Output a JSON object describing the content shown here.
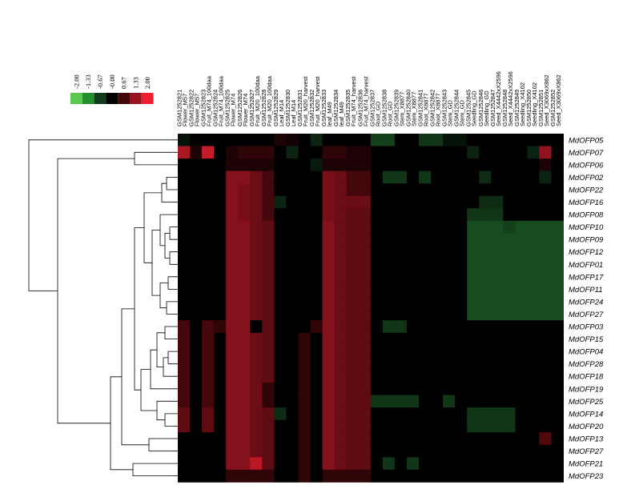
{
  "chart_data": {
    "type": "heatmap",
    "color_scale": {
      "ticks": [
        "-2.00",
        "-1.33",
        "-0.67",
        "-0.00",
        "0.67",
        "1.33",
        "2.00"
      ],
      "colors": [
        "#58c84f",
        "#248f2c",
        "#123b1a",
        "#000000",
        "#40060a",
        "#961420",
        "#ee2030"
      ],
      "range": [
        -2,
        2
      ]
    },
    "columns": [
      {
        "id": "GSM1252821",
        "tissue": "Flower_M57"
      },
      {
        "id": "GSM1252822",
        "tissue": "Flower_M57"
      },
      {
        "id": "GSM1252823",
        "tissue": "Fruit_M74_100daa"
      },
      {
        "id": "GSM1252824",
        "tissue": "Fruit_M74_100daa"
      },
      {
        "id": "GSM1252825",
        "tissue": "Flower_M74"
      },
      {
        "id": "GSM1252826",
        "tissue": "Flower_M74"
      },
      {
        "id": "GSM1252827",
        "tissue": "Fruit_M20_100daa"
      },
      {
        "id": "GSM1252828",
        "tissue": "Fruit_M20_100daa"
      },
      {
        "id": "GSM1252829",
        "tissue": "Leaf_M14"
      },
      {
        "id": "GSM1252830",
        "tissue": "Leaf_M14"
      },
      {
        "id": "GSM1252831",
        "tissue": "Fruit_M20_harvest"
      },
      {
        "id": "GSM1252832",
        "tissue": "Fruit_M20_harvest"
      },
      {
        "id": "GSM1252833",
        "tissue": "leaf_M49"
      },
      {
        "id": "GSM1252834",
        "tissue": "leaf_M49"
      },
      {
        "id": "GSM1252835",
        "tissue": "Fruit_M74_harvest"
      },
      {
        "id": "GSM1252836",
        "tissue": "Fruit_M74_harvest"
      },
      {
        "id": "GSM1252837",
        "tissue": "Root_GD"
      },
      {
        "id": "GSM1252838",
        "tissue": "Root_GD"
      },
      {
        "id": "GSM1252839",
        "tissue": "Stem_X8877"
      },
      {
        "id": "GSM1252840",
        "tissue": "Stem_X8877"
      },
      {
        "id": "GSM1252841",
        "tissue": "Root_X8877"
      },
      {
        "id": "GSM1252842",
        "tissue": "Root_X8877"
      },
      {
        "id": "GSM1252843",
        "tissue": "Stem_GD"
      },
      {
        "id": "GSM1252844",
        "tissue": "Stem_GD"
      },
      {
        "id": "GSM1252845",
        "tissue": "Seedling_GD"
      },
      {
        "id": "GSM1252846",
        "tissue": "Seedling_GD"
      },
      {
        "id": "GSM1252847",
        "tissue": "Seed_X4442xX2596"
      },
      {
        "id": "GSM1252848",
        "tissue": "Seed_X4442xX2596"
      },
      {
        "id": "GSM1252849",
        "tissue": "Seedling_X4102"
      },
      {
        "id": "GSM1252850",
        "tissue": "Seedling_X4102"
      },
      {
        "id": "GSM1252851",
        "tissue": "Seed_X3069xX862"
      },
      {
        "id": "GSM1252852",
        "tissue": "Seed_X3069xX862"
      }
    ],
    "rows": [
      "MdOFP05",
      "MdOFP07",
      "MdOFP06",
      "MdOFP02",
      "MdOFP22",
      "MdOFP16",
      "MdOFP08",
      "MdOFP10",
      "MdOFP09",
      "MdOFP12",
      "MdOFP01",
      "MdOFP17",
      "MdOFP11",
      "MdOFP24",
      "MdOFP27",
      "MdOFP03",
      "MdOFP15",
      "MdOFP04",
      "MdOFP28",
      "MdOFP18",
      "MdOFP19",
      "MdOFP25",
      "MdOFP14",
      "MdOFP20",
      "MdOFP13",
      "MdOFP27",
      "MdOFP21",
      "MdOFP23"
    ],
    "values": [
      [
        -0.2,
        0.0,
        0.0,
        0.0,
        0.0,
        0.0,
        0.0,
        0.0,
        0.3,
        0.2,
        0.0,
        -0.4,
        0.0,
        0.0,
        0.0,
        0.0,
        -0.7,
        -0.7,
        0.0,
        0.0,
        -0.6,
        -0.6,
        -0.2,
        -0.2,
        0.0,
        0.0,
        0.0,
        0.0,
        0.0,
        0.0,
        0.0,
        0.0
      ],
      [
        1.5,
        0.3,
        1.7,
        0.0,
        0.3,
        0.5,
        0.5,
        0.5,
        0.0,
        -0.4,
        0.0,
        0.0,
        0.5,
        0.5,
        0.3,
        0.3,
        0.0,
        0.0,
        0.0,
        0.0,
        0.0,
        0.0,
        0.0,
        0.0,
        -0.4,
        0.0,
        0.0,
        0.0,
        0.0,
        -0.4,
        1.3,
        0.0
      ],
      [
        0.0,
        0.0,
        0.0,
        0.0,
        0.3,
        0.3,
        0.3,
        0.3,
        0.0,
        0.0,
        0.0,
        -0.3,
        0.3,
        0.3,
        0.3,
        0.3,
        0.0,
        0.0,
        0.0,
        0.0,
        0.0,
        0.0,
        0.0,
        0.0,
        0.0,
        0.0,
        0.0,
        0.0,
        0.0,
        0.0,
        0.3,
        0.0
      ],
      [
        0.0,
        0.0,
        0.0,
        0.0,
        1.2,
        1.2,
        1.0,
        0.7,
        0.0,
        0.0,
        0.0,
        0.0,
        1.1,
        1.0,
        0.7,
        0.7,
        0.0,
        -0.6,
        -0.6,
        0.0,
        -0.6,
        0.0,
        0.0,
        0.0,
        0.0,
        -0.5,
        0.0,
        0.0,
        0.0,
        0.0,
        -0.4,
        0.0
      ],
      [
        0.0,
        0.0,
        0.0,
        0.0,
        1.2,
        1.1,
        1.0,
        0.7,
        0.0,
        0.0,
        0.0,
        0.0,
        1.1,
        1.0,
        0.7,
        0.7,
        0.0,
        0.0,
        0.0,
        0.0,
        0.0,
        0.0,
        0.0,
        0.0,
        0.0,
        0.0,
        0.0,
        0.0,
        0.0,
        0.0,
        0.0,
        0.0
      ],
      [
        0.0,
        0.0,
        0.0,
        0.0,
        1.2,
        1.1,
        1.0,
        0.7,
        -0.4,
        0.0,
        0.0,
        0.0,
        1.1,
        1.0,
        1.0,
        1.0,
        0.0,
        0.0,
        0.0,
        0.0,
        0.0,
        0.0,
        0.0,
        0.0,
        0.0,
        -0.5,
        -0.5,
        0.0,
        0.0,
        0.0,
        0.0,
        0.0
      ],
      [
        0.0,
        0.0,
        0.0,
        0.0,
        1.2,
        1.1,
        1.0,
        0.7,
        0.0,
        0.0,
        0.0,
        0.0,
        1.1,
        1.0,
        0.9,
        0.9,
        0.0,
        0.0,
        0.0,
        0.0,
        0.0,
        0.0,
        0.0,
        0.0,
        -0.6,
        -0.6,
        -0.6,
        0.0,
        0.0,
        0.0,
        0.0,
        0.0
      ],
      [
        0.0,
        0.0,
        0.0,
        0.0,
        1.2,
        1.2,
        1.0,
        0.9,
        0.0,
        0.0,
        0.0,
        0.0,
        1.2,
        1.0,
        0.9,
        0.9,
        0.0,
        0.0,
        0.0,
        0.0,
        0.0,
        0.0,
        0.0,
        0.0,
        -0.8,
        -0.8,
        -0.8,
        -0.7,
        -0.8,
        -0.8,
        -0.8,
        -0.8
      ],
      [
        0.0,
        0.0,
        0.0,
        0.0,
        1.2,
        1.2,
        1.0,
        0.9,
        0.0,
        0.0,
        0.0,
        0.0,
        1.2,
        1.0,
        0.9,
        0.9,
        0.0,
        0.0,
        0.0,
        0.0,
        0.0,
        0.0,
        0.0,
        0.0,
        -0.8,
        -0.8,
        -0.8,
        -0.8,
        -0.8,
        -0.8,
        -0.8,
        -0.8
      ],
      [
        0.0,
        0.0,
        0.0,
        0.0,
        1.2,
        1.2,
        1.0,
        0.9,
        0.0,
        0.0,
        0.0,
        0.0,
        1.2,
        1.0,
        0.9,
        0.9,
        0.0,
        0.0,
        0.0,
        0.0,
        0.0,
        0.0,
        0.0,
        0.0,
        -0.8,
        -0.8,
        -0.8,
        -0.8,
        -0.8,
        -0.8,
        -0.8,
        -0.8
      ],
      [
        0.0,
        0.0,
        0.0,
        0.0,
        1.2,
        1.2,
        1.0,
        0.9,
        0.0,
        0.0,
        0.0,
        0.0,
        1.2,
        1.0,
        0.9,
        0.9,
        0.0,
        0.0,
        0.0,
        0.0,
        0.0,
        0.0,
        0.0,
        0.0,
        -0.8,
        -0.8,
        -0.8,
        -0.8,
        -0.8,
        -0.8,
        -0.8,
        -0.8
      ],
      [
        0.0,
        0.0,
        0.0,
        0.0,
        1.2,
        1.2,
        1.0,
        0.9,
        0.0,
        0.0,
        0.0,
        0.0,
        1.2,
        1.0,
        0.9,
        0.9,
        0.0,
        0.0,
        0.0,
        0.0,
        0.0,
        0.0,
        0.0,
        0.0,
        -0.8,
        -0.8,
        -0.8,
        -0.8,
        -0.8,
        -0.8,
        -0.8,
        -0.8
      ],
      [
        0.0,
        0.0,
        0.0,
        0.0,
        1.2,
        1.2,
        1.0,
        0.9,
        0.0,
        0.0,
        0.0,
        0.0,
        1.2,
        1.0,
        0.9,
        0.9,
        0.0,
        0.0,
        0.0,
        0.0,
        0.0,
        0.0,
        0.0,
        0.0,
        -0.8,
        -0.8,
        -0.8,
        -0.8,
        -0.8,
        -0.8,
        -0.8,
        -0.8
      ],
      [
        0.0,
        0.0,
        0.0,
        0.0,
        1.2,
        1.2,
        1.0,
        0.9,
        0.0,
        0.0,
        0.0,
        0.0,
        1.2,
        1.0,
        0.9,
        0.9,
        0.0,
        0.0,
        0.0,
        0.0,
        0.0,
        0.0,
        0.0,
        0.0,
        -0.8,
        -0.8,
        -0.8,
        -0.8,
        -0.8,
        -0.8,
        -0.8,
        -0.8
      ],
      [
        0.0,
        0.0,
        0.0,
        0.0,
        1.2,
        1.2,
        1.0,
        0.9,
        0.0,
        0.0,
        0.0,
        0.0,
        1.2,
        1.0,
        0.9,
        0.9,
        0.0,
        0.0,
        0.0,
        0.0,
        0.0,
        0.0,
        0.0,
        0.0,
        -0.8,
        -0.8,
        -0.8,
        -0.8,
        -0.8,
        -0.8,
        -0.8,
        -0.8
      ],
      [
        0.7,
        0.0,
        0.7,
        0.5,
        1.2,
        1.2,
        0.0,
        0.9,
        0.0,
        0.0,
        0.0,
        0.5,
        1.2,
        1.0,
        0.9,
        0.9,
        0.0,
        -0.6,
        -0.6,
        0.0,
        0.0,
        0.0,
        0.0,
        0.0,
        0.0,
        0.0,
        0.0,
        0.0,
        0.0,
        0.0,
        0.0,
        0.0
      ],
      [
        0.7,
        0.0,
        0.7,
        0.0,
        1.2,
        1.2,
        1.0,
        0.9,
        0.0,
        0.0,
        0.5,
        0.0,
        1.2,
        1.0,
        0.9,
        0.9,
        0.0,
        0.0,
        0.0,
        0.0,
        0.0,
        0.0,
        0.0,
        0.0,
        0.0,
        0.0,
        0.0,
        0.0,
        0.0,
        0.0,
        0.0,
        0.0
      ],
      [
        0.7,
        0.0,
        0.7,
        0.0,
        1.2,
        1.2,
        1.0,
        0.9,
        0.0,
        0.0,
        0.5,
        0.0,
        1.2,
        1.0,
        0.9,
        0.9,
        0.0,
        0.0,
        0.0,
        0.0,
        0.0,
        0.0,
        0.0,
        0.0,
        0.0,
        0.0,
        0.0,
        0.0,
        0.0,
        0.0,
        0.0,
        0.0
      ],
      [
        0.7,
        0.0,
        0.7,
        0.0,
        1.2,
        1.2,
        1.0,
        0.9,
        0.0,
        0.0,
        0.5,
        0.0,
        1.2,
        1.0,
        0.9,
        0.9,
        0.0,
        0.0,
        0.0,
        0.0,
        0.0,
        0.0,
        0.0,
        0.0,
        0.0,
        0.0,
        0.0,
        0.0,
        0.0,
        0.0,
        0.0,
        0.0
      ],
      [
        0.7,
        0.0,
        0.7,
        0.0,
        1.2,
        1.2,
        1.0,
        0.9,
        0.0,
        0.0,
        0.5,
        0.0,
        1.2,
        1.0,
        0.9,
        0.9,
        0.0,
        0.0,
        0.0,
        0.0,
        0.0,
        0.0,
        0.0,
        0.0,
        0.0,
        0.0,
        0.0,
        0.0,
        0.0,
        0.0,
        0.0,
        0.0
      ],
      [
        0.7,
        0.0,
        0.7,
        0.0,
        1.2,
        1.2,
        1.0,
        0.5,
        0.0,
        0.0,
        0.5,
        0.0,
        1.2,
        1.0,
        0.9,
        0.9,
        0.0,
        0.0,
        0.0,
        0.0,
        0.0,
        0.0,
        0.0,
        0.0,
        0.0,
        0.0,
        0.0,
        0.0,
        0.0,
        0.0,
        0.0,
        0.0
      ],
      [
        0.7,
        0.0,
        0.7,
        0.0,
        1.2,
        1.2,
        1.0,
        0.5,
        0.0,
        0.0,
        0.5,
        0.0,
        1.2,
        1.0,
        0.9,
        0.9,
        -0.6,
        -0.6,
        -0.6,
        -0.6,
        0.0,
        0.0,
        -0.6,
        0.0,
        0.0,
        0.0,
        0.0,
        0.0,
        0.0,
        0.0,
        0.0,
        0.0
      ],
      [
        0.9,
        0.0,
        0.9,
        0.0,
        1.2,
        1.2,
        1.0,
        0.9,
        -0.5,
        0.0,
        0.5,
        0.0,
        1.2,
        1.0,
        0.9,
        0.9,
        0.0,
        0.0,
        0.0,
        0.0,
        0.0,
        0.0,
        0.0,
        0.0,
        -0.6,
        -0.6,
        -0.6,
        -0.6,
        0.0,
        0.0,
        0.0,
        0.0
      ],
      [
        0.9,
        0.0,
        0.9,
        0.0,
        1.2,
        1.2,
        1.0,
        0.9,
        0.0,
        0.0,
        0.5,
        0.0,
        1.2,
        1.0,
        0.9,
        0.9,
        0.0,
        0.0,
        0.0,
        0.0,
        0.0,
        0.0,
        0.0,
        0.0,
        -0.6,
        -0.6,
        -0.6,
        -0.6,
        0.0,
        0.0,
        0.0,
        0.0
      ],
      [
        0.0,
        0.0,
        0.0,
        0.0,
        1.2,
        1.2,
        1.0,
        0.9,
        0.0,
        0.0,
        0.5,
        0.0,
        1.2,
        1.0,
        0.9,
        0.9,
        0.0,
        0.0,
        0.0,
        0.0,
        0.0,
        0.0,
        0.0,
        0.0,
        0.0,
        0.0,
        0.0,
        0.0,
        0.0,
        0.0,
        0.8,
        0.0
      ],
      [
        0.0,
        0.0,
        0.0,
        0.0,
        1.2,
        1.2,
        1.0,
        0.9,
        0.0,
        0.0,
        0.5,
        0.0,
        1.2,
        1.0,
        0.9,
        0.9,
        0.0,
        0.0,
        0.0,
        0.0,
        0.0,
        0.0,
        0.0,
        0.0,
        0.0,
        0.0,
        0.0,
        0.0,
        0.0,
        0.0,
        0.0,
        0.0
      ],
      [
        0.0,
        0.0,
        0.0,
        0.0,
        1.2,
        1.2,
        1.6,
        0.9,
        0.0,
        0.0,
        0.5,
        0.0,
        1.2,
        1.0,
        0.9,
        0.9,
        0.0,
        -0.6,
        0.0,
        -0.6,
        0.0,
        0.0,
        0.0,
        0.0,
        0.0,
        0.0,
        0.0,
        0.0,
        0.0,
        0.0,
        0.0,
        0.0
      ],
      [
        0.0,
        0.0,
        0.0,
        0.0,
        0.5,
        0.5,
        0.5,
        0.5,
        0.0,
        0.0,
        0.5,
        0.0,
        0.5,
        0.5,
        0.5,
        0.5,
        0.0,
        0.0,
        0.0,
        0.0,
        0.0,
        0.0,
        0.0,
        0.0,
        0.0,
        0.0,
        0.0,
        0.0,
        0.0,
        0.0,
        0.0,
        0.0
      ]
    ]
  }
}
